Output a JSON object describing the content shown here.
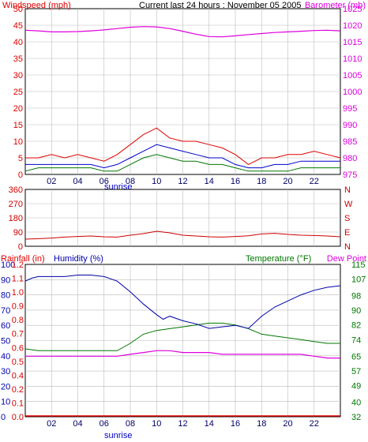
{
  "colors": {
    "wind": "#e00000",
    "wind_avg": "#0000cc",
    "wind_min": "#007700",
    "barometer": "#dd00dd",
    "direction": "#cc0000",
    "rain": "#dd0000",
    "humidity": "#0000aa",
    "temperature": "#007700",
    "dew": "#dd00dd",
    "grid": "#bbbbbb"
  },
  "header": {
    "title": "Current last 24 hours : November 05 2005",
    "sunrise_label": "sunrise"
  },
  "chart_data": [
    {
      "type": "line",
      "ylabel_left": "Windspeed (mph)",
      "ylabel_right": "Barometer (mb)",
      "x_ticks": [
        "02",
        "04",
        "06",
        "08",
        "10",
        "12",
        "14",
        "16",
        "18",
        "20",
        "22"
      ],
      "x_range": [
        0,
        24
      ],
      "ylim_left": [
        0,
        50
      ],
      "yticks_left": [
        0,
        5,
        10,
        15,
        20,
        25,
        30,
        35,
        40,
        45,
        50
      ],
      "ylim_right": [
        975,
        1025
      ],
      "yticks_right": [
        975,
        980,
        985,
        990,
        995,
        1000,
        1005,
        1010,
        1015,
        1020,
        1025
      ],
      "series": [
        {
          "name": "Windspeed gust",
          "x": [
            0,
            1,
            2,
            3,
            4,
            5,
            6,
            7,
            8,
            9,
            10,
            11,
            12,
            13,
            14,
            15,
            16,
            17,
            18,
            19,
            20,
            21,
            22,
            23,
            24
          ],
          "values": [
            5,
            5,
            6,
            5,
            6,
            5,
            4,
            6,
            9,
            12,
            14,
            11,
            10,
            10,
            9,
            8,
            6,
            3,
            5,
            5,
            6,
            6,
            7,
            6,
            5
          ]
        },
        {
          "name": "Windspeed average",
          "x": [
            0,
            1,
            2,
            3,
            4,
            5,
            6,
            7,
            8,
            9,
            10,
            11,
            12,
            13,
            14,
            15,
            16,
            17,
            18,
            19,
            20,
            21,
            22,
            23,
            24
          ],
          "values": [
            3,
            3,
            3,
            3,
            3,
            3,
            2,
            3,
            5,
            7,
            9,
            8,
            7,
            6,
            5,
            5,
            3,
            2,
            2,
            3,
            3,
            4,
            4,
            4,
            4
          ]
        },
        {
          "name": "Windspeed low",
          "x": [
            0,
            1,
            2,
            3,
            4,
            5,
            6,
            7,
            8,
            9,
            10,
            11,
            12,
            13,
            14,
            15,
            16,
            17,
            18,
            19,
            20,
            21,
            22,
            23,
            24
          ],
          "values": [
            1,
            2,
            2,
            2,
            2,
            2,
            1,
            1,
            3,
            5,
            6,
            5,
            4,
            4,
            3,
            3,
            2,
            1,
            1,
            1,
            1,
            2,
            2,
            2,
            2
          ]
        },
        {
          "name": "Barometer",
          "axis": "right",
          "x": [
            0,
            1,
            2,
            3,
            4,
            5,
            6,
            7,
            8,
            9,
            10,
            11,
            12,
            13,
            14,
            15,
            16,
            17,
            18,
            19,
            20,
            21,
            22,
            23,
            24
          ],
          "values": [
            1018.5,
            1018.3,
            1018.0,
            1018.0,
            1018.1,
            1018.3,
            1018.6,
            1019.0,
            1019.4,
            1019.6,
            1019.5,
            1019.0,
            1018.2,
            1017.3,
            1016.6,
            1016.5,
            1016.8,
            1017.2,
            1017.5,
            1017.8,
            1018.0,
            1018.2,
            1018.4,
            1018.5,
            1018.3
          ]
        }
      ]
    },
    {
      "type": "line",
      "ylabel_right_letters": [
        "N",
        "W",
        "S",
        "E",
        "N"
      ],
      "x_range": [
        0,
        24
      ],
      "ylim": [
        0,
        360
      ],
      "yticks": [
        0,
        90,
        180,
        270,
        360
      ],
      "series": [
        {
          "name": "Wind direction",
          "x": [
            0,
            1,
            2,
            3,
            4,
            5,
            6,
            7,
            8,
            9,
            10,
            11,
            12,
            13,
            14,
            15,
            16,
            17,
            18,
            19,
            20,
            21,
            22,
            23,
            24
          ],
          "values": [
            45,
            48,
            52,
            58,
            62,
            65,
            60,
            58,
            70,
            80,
            95,
            85,
            70,
            65,
            60,
            58,
            62,
            66,
            78,
            82,
            75,
            70,
            68,
            65,
            60
          ]
        }
      ]
    },
    {
      "type": "line",
      "ylabel_left_rain": "Rainfall (in)",
      "ylabel_left_humidity": "Humidity (%)",
      "ylabel_right_temp": "Temperature (°F)",
      "ylabel_right_dew": "Dew Point",
      "x_ticks": [
        "02",
        "04",
        "06",
        "08",
        "10",
        "12",
        "14",
        "16",
        "18",
        "20",
        "22"
      ],
      "x_range": [
        0,
        24
      ],
      "ylim_humidity": [
        0,
        100
      ],
      "yticks_humidity": [
        0,
        10,
        20,
        30,
        40,
        50,
        60,
        70,
        80,
        90,
        100
      ],
      "yticks_rain": [
        "0.0",
        "0.1",
        "0.2",
        "0.4",
        "0.5",
        "0.6",
        "0.7",
        "0.8",
        "0.9",
        "1.0",
        "1.1",
        "1.2"
      ],
      "ylim_temp": [
        32,
        115
      ],
      "yticks_temp": [
        32,
        40,
        49,
        57,
        65,
        74,
        82,
        90,
        98,
        107,
        115
      ],
      "series": [
        {
          "name": "Humidity",
          "x": [
            0,
            0.5,
            1,
            2,
            3,
            4,
            5,
            6,
            7,
            8,
            9,
            10,
            10.5,
            11,
            12,
            13,
            14,
            15,
            16,
            17,
            18,
            19,
            20,
            21,
            22,
            23,
            24
          ],
          "values": [
            89,
            91,
            92,
            92,
            92,
            93,
            93,
            92,
            89,
            82,
            74,
            67,
            64,
            66,
            63,
            61,
            58,
            59,
            60,
            58,
            66,
            72,
            76,
            80,
            83,
            85,
            86
          ]
        },
        {
          "name": "Temperature",
          "axis": "right",
          "x": [
            0,
            1,
            2,
            3,
            4,
            5,
            6,
            7,
            8,
            9,
            10,
            11,
            12,
            13,
            14,
            15,
            16,
            17,
            18,
            19,
            20,
            21,
            22,
            23,
            24
          ],
          "values": [
            69,
            68,
            68,
            68,
            68,
            68,
            68,
            68,
            72,
            77,
            79,
            80,
            81,
            82,
            83,
            83,
            82,
            80,
            77,
            76,
            75,
            74,
            73,
            72,
            72
          ]
        },
        {
          "name": "Dew Point",
          "axis": "right",
          "x": [
            0,
            1,
            2,
            3,
            4,
            5,
            6,
            7,
            8,
            9,
            10,
            11,
            12,
            13,
            14,
            15,
            16,
            17,
            18,
            19,
            20,
            21,
            22,
            23,
            24
          ],
          "values": [
            65,
            65,
            65,
            65,
            65,
            65,
            65,
            65,
            66,
            67,
            68,
            68,
            67,
            67,
            67,
            66,
            66,
            66,
            66,
            66,
            66,
            66,
            65,
            64,
            64
          ]
        },
        {
          "name": "Rainfall",
          "x": [
            0,
            24
          ],
          "values": [
            0.0,
            0.0
          ]
        }
      ]
    }
  ]
}
